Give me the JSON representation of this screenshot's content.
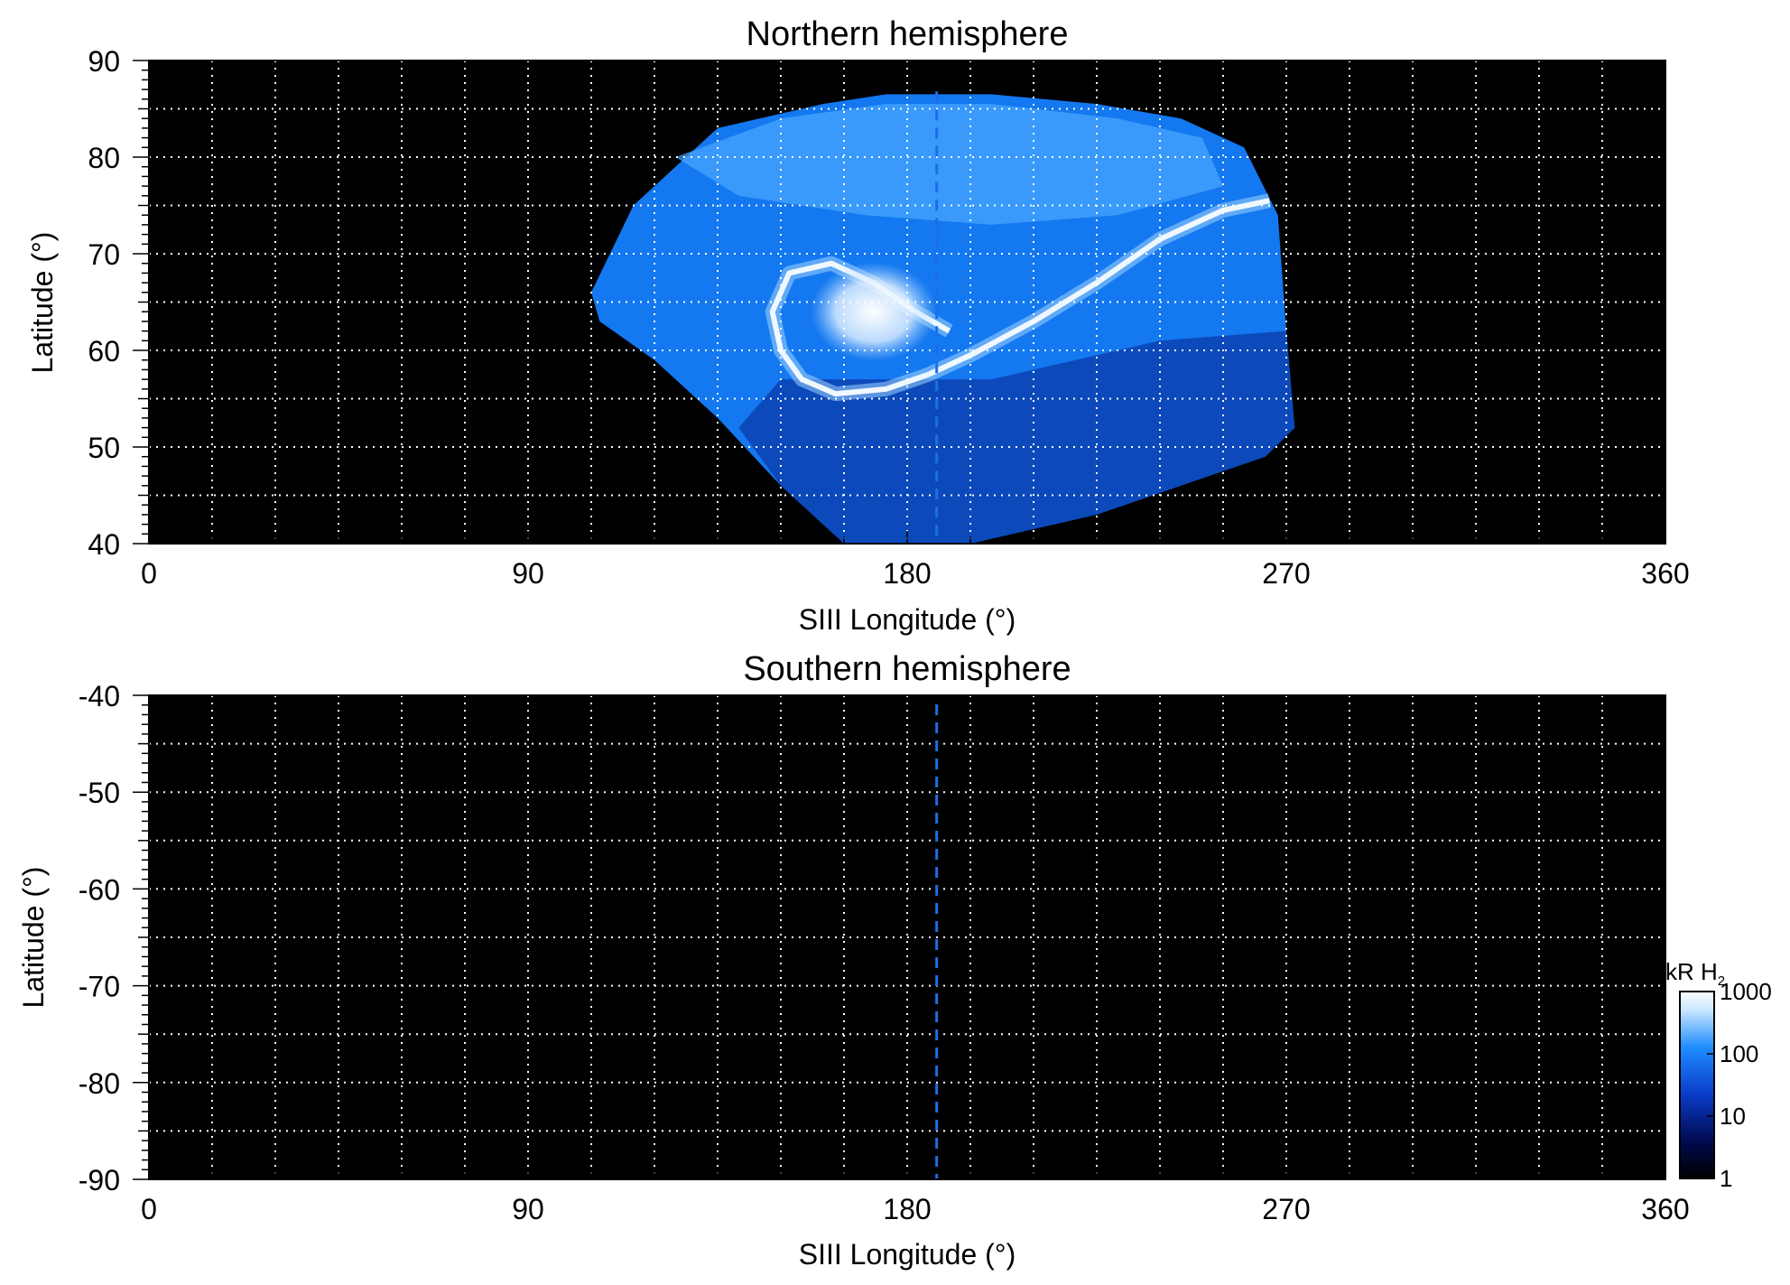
{
  "chart_data": [
    {
      "type": "heatmap",
      "title": "Northern hemisphere",
      "xlabel": "SIII Longitude (°)",
      "ylabel": "Latitude (°)",
      "xlim": [
        0,
        360
      ],
      "ylim": [
        40,
        90
      ],
      "xticks": [
        "0",
        "90",
        "180",
        "270",
        "360"
      ],
      "yticks": [
        "90",
        "80",
        "70",
        "60",
        "50",
        "40"
      ],
      "grid": true,
      "background_color": "#000000",
      "grid_color": "#ffffff",
      "reference_line": {
        "longitude": 187,
        "color": "#1e6ee6",
        "style": "dashed"
      },
      "emission_region": {
        "color": "#1478f0",
        "footprint": [
          [
            105,
            66
          ],
          [
            115,
            75
          ],
          [
            135,
            83
          ],
          [
            160,
            85.5
          ],
          [
            175,
            86.5
          ],
          [
            200,
            86.5
          ],
          [
            225,
            85.5
          ],
          [
            245,
            84
          ],
          [
            260,
            81
          ],
          [
            268,
            74
          ],
          [
            270,
            62
          ],
          [
            272,
            52
          ],
          [
            265,
            49
          ],
          [
            245,
            46
          ],
          [
            225,
            43
          ],
          [
            195,
            40
          ],
          [
            165,
            40
          ],
          [
            150,
            46
          ],
          [
            135,
            53
          ],
          [
            120,
            59
          ],
          [
            107,
            63
          ]
        ]
      },
      "auroral_features": {
        "main_oval": [
          [
            266,
            75.5
          ],
          [
            255,
            74.5
          ],
          [
            240,
            71.5
          ],
          [
            225,
            67
          ],
          [
            210,
            63
          ],
          [
            195,
            59.5
          ],
          [
            185,
            57.5
          ],
          [
            175,
            56
          ],
          [
            163,
            55.5
          ],
          [
            155,
            57
          ],
          [
            150,
            60
          ],
          [
            148,
            64
          ],
          [
            152,
            68
          ],
          [
            162,
            69
          ],
          [
            172,
            67
          ],
          [
            182,
            64
          ],
          [
            190,
            62
          ]
        ],
        "bright_spot": {
          "lon": 172,
          "lat": 64,
          "value_kR": 1000
        }
      }
    },
    {
      "type": "heatmap",
      "title": "Southern hemisphere",
      "xlabel": "SIII Longitude (°)",
      "ylabel": "Latitude (°)",
      "xlim": [
        0,
        360
      ],
      "ylim": [
        -90,
        -40
      ],
      "xticks": [
        "0",
        "90",
        "180",
        "270",
        "360"
      ],
      "yticks": [
        "-40",
        "-50",
        "-60",
        "-70",
        "-80",
        "-90"
      ],
      "grid": true,
      "background_color": "#000000",
      "grid_color": "#ffffff",
      "reference_line": {
        "longitude": 187,
        "color": "#1e6ee6",
        "style": "dashed"
      }
    }
  ],
  "colorbar": {
    "title_main": "kR H",
    "title_sub": "2",
    "scale": "log",
    "ticks": [
      "1000",
      "100",
      "10",
      "1"
    ],
    "range": [
      1,
      1000
    ],
    "colors": [
      "#000000",
      "#000a50",
      "#0a3cc8",
      "#1e8cff",
      "#c8e6ff",
      "#ffffff"
    ]
  }
}
